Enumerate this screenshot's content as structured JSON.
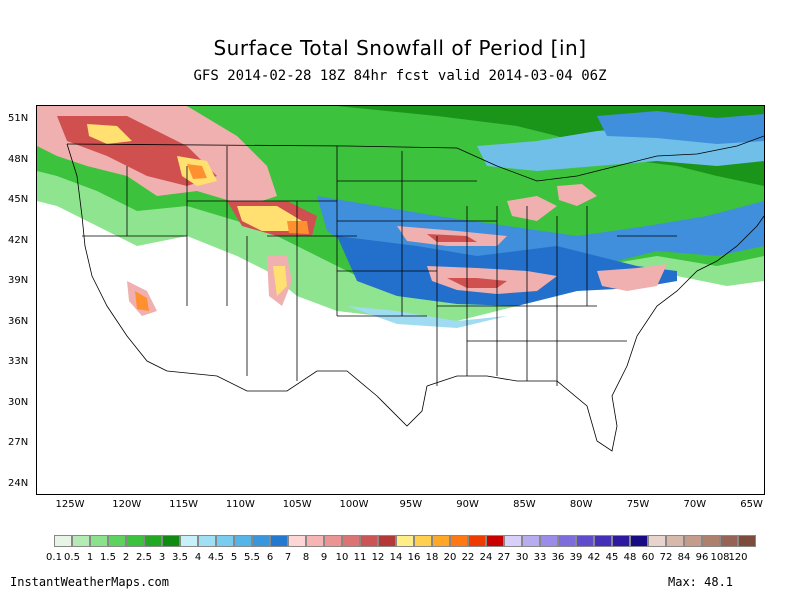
{
  "map": {
    "title": "Surface Total Snowfall of Period [in]",
    "subtitle": "GFS 2014-02-28 18Z 84hr fcst valid 2014-03-04 06Z",
    "lat_ticks": [
      "51N",
      "48N",
      "45N",
      "42N",
      "39N",
      "36N",
      "33N",
      "30N",
      "27N",
      "24N"
    ],
    "lon_ticks": [
      "125W",
      "120W",
      "115W",
      "110W",
      "105W",
      "100W",
      "95W",
      "90W",
      "85W",
      "80W",
      "75W",
      "70W",
      "65W"
    ]
  },
  "legend": {
    "labels": [
      "0.1",
      "0.5",
      "1",
      "1.5",
      "2",
      "2.5",
      "3",
      "3.5",
      "4",
      "4.5",
      "5",
      "5.5",
      "6",
      "7",
      "8",
      "9",
      "10",
      "11",
      "12",
      "14",
      "16",
      "18",
      "20",
      "22",
      "24",
      "27",
      "30",
      "33",
      "36",
      "39",
      "42",
      "45",
      "48",
      "60",
      "72",
      "84",
      "96",
      "108",
      "120"
    ],
    "colors": [
      "#e6f5e6",
      "#b4ebb4",
      "#8be28b",
      "#5ed25e",
      "#3cc23c",
      "#22a822",
      "#0f8c0f",
      "#c8f0f8",
      "#a0e0f5",
      "#78cdef",
      "#55b4e8",
      "#3a96dc",
      "#2378d0",
      "#ffd6d6",
      "#f6b4b4",
      "#ea9494",
      "#dc7474",
      "#cc5454",
      "#b43838",
      "#aa2222",
      "#ffee88",
      "#ffd050",
      "#ffa828",
      "#ff7814",
      "#ee3c00",
      "#c80000",
      "#d8d0f8",
      "#b8acf0",
      "#9a8ce8",
      "#7c6cdc",
      "#5e4ccc",
      "#4230b8",
      "#2c1aa0",
      "#180c84",
      "#e8d4cc",
      "#d8b8aa",
      "#c49c8c",
      "#ae806e",
      "#966454",
      "#7c4c3c"
    ],
    "ramp_colors": [
      "#e6f5e6",
      "#b4ebb4",
      "#8be28b",
      "#5ed25e",
      "#3cc23c",
      "#22a822",
      "#0f8c0f",
      "#c8f0f8",
      "#a0e0f5",
      "#78cdef",
      "#55b4e8",
      "#3a96dc",
      "#2378d0",
      "#ffd6d6",
      "#f6b4b4",
      "#ea9494",
      "#dc7474",
      "#cc5454",
      "#b43838",
      "#ffee88",
      "#ffd050",
      "#ffa828",
      "#ff7814",
      "#ee3c00",
      "#c80000",
      "#d8d0f8",
      "#b8acf0",
      "#9a8ce8",
      "#7c6cdc",
      "#5e4ccc",
      "#4230b8",
      "#2c1aa0",
      "#180c84",
      "#e8d4cc",
      "#d8b8aa",
      "#c49c8c",
      "#ae806e",
      "#966454",
      "#7c4c3c"
    ]
  },
  "footer": {
    "source": "InstantWeatherMaps.com",
    "max": "Max:  48.1"
  },
  "colors": {
    "snow_light_green": "#7fe07f",
    "snow_green": "#2fb52f",
    "snow_dark_green": "#168f16",
    "snow_light_blue": "#9fdcf2",
    "snow_blue": "#3f8fdc",
    "snow_deep_blue": "#2370cc",
    "snow_pink": "#f0b0b0",
    "snow_red": "#d05050",
    "snow_yellow": "#ffe070",
    "snow_orange": "#ff9030",
    "outline": "#000000"
  }
}
